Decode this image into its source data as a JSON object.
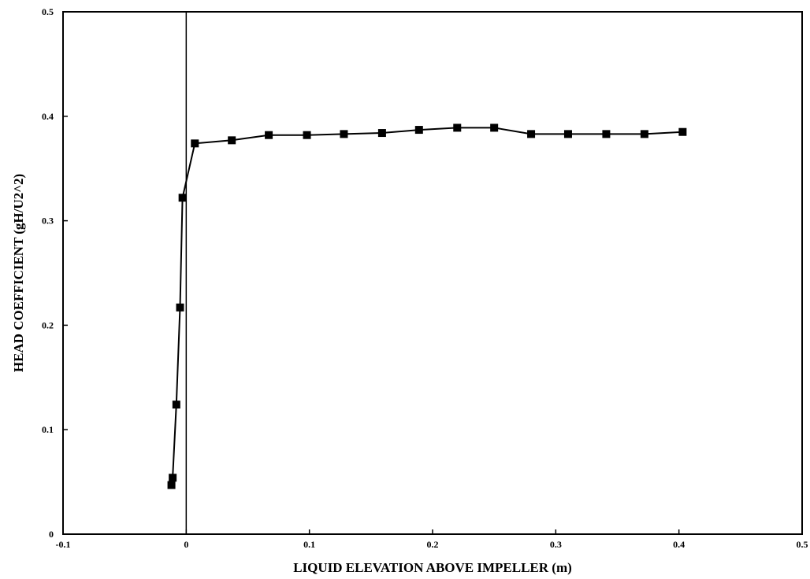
{
  "chart_data": {
    "type": "line",
    "xlabel": "LIQUID ELEVATION ABOVE IMPELLER (m)",
    "ylabel": "HEAD COEFFICIENT (gH/U2^2)",
    "xlim": [
      -0.1,
      0.5
    ],
    "ylim": [
      0,
      0.5
    ],
    "x_ticks": [
      -0.1,
      0,
      0.1,
      0.2,
      0.3,
      0.4,
      0.5
    ],
    "x_tick_labels": [
      "-0.1",
      "0",
      "0.1",
      "0.2",
      "0.3",
      "0.4",
      "0.5"
    ],
    "y_ticks": [
      0,
      0.1,
      0.2,
      0.3,
      0.4,
      0.5
    ],
    "y_tick_labels": [
      "0",
      "0.1",
      "0.2",
      "0.3",
      "0.4",
      "0.5"
    ],
    "reference_line_x": 0,
    "grid": false,
    "marker": "square",
    "series": [
      {
        "x": [
          -0.012,
          -0.011,
          -0.008,
          -0.005,
          -0.003,
          0.007,
          0.037,
          0.067,
          0.098,
          0.128,
          0.159,
          0.189,
          0.22,
          0.25,
          0.28,
          0.31,
          0.341,
          0.372,
          0.403
        ],
        "y": [
          0.047,
          0.054,
          0.124,
          0.217,
          0.322,
          0.374,
          0.377,
          0.382,
          0.382,
          0.383,
          0.384,
          0.387,
          0.389,
          0.389,
          0.383,
          0.383,
          0.383,
          0.383,
          0.385
        ]
      }
    ]
  }
}
